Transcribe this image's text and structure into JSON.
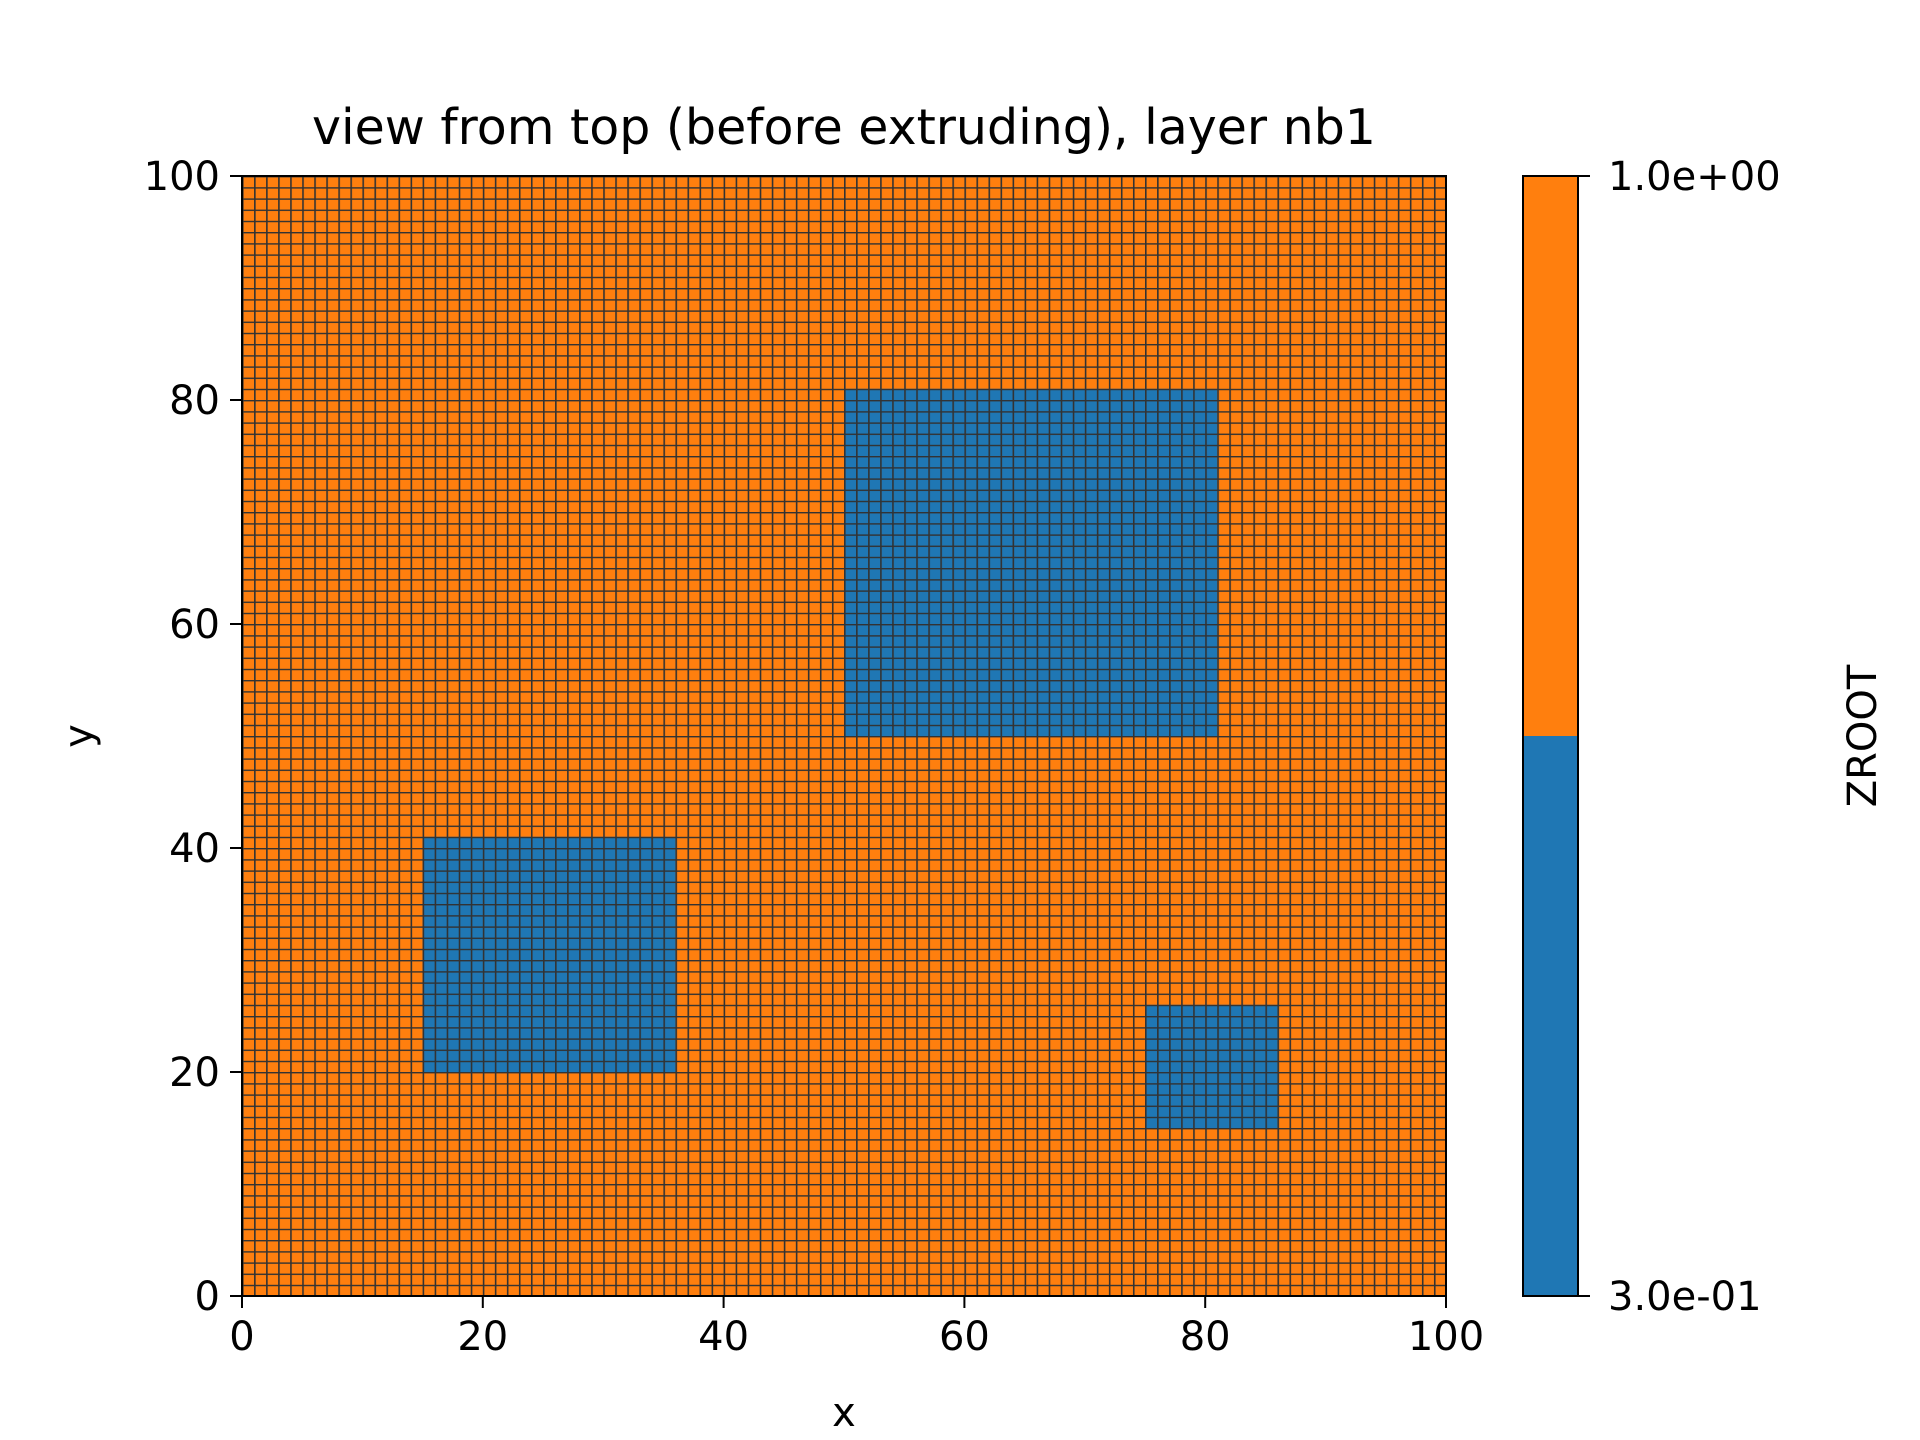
{
  "chart_data": {
    "type": "heatmap",
    "title": "view from top (before extruding), layer nb1",
    "xlabel": "x",
    "ylabel": "y",
    "xlim": [
      0,
      100
    ],
    "ylim": [
      0,
      100
    ],
    "x_ticks": [
      "0",
      "20",
      "40",
      "60",
      "80",
      "100"
    ],
    "y_ticks": [
      "0",
      "20",
      "40",
      "60",
      "80",
      "100"
    ],
    "grid_lines": true,
    "grid_spacing": 1,
    "background_value": 1.0,
    "regions": [
      {
        "x": [
          15,
          36
        ],
        "y": [
          20,
          41
        ],
        "value": 0.3
      },
      {
        "x": [
          50,
          81
        ],
        "y": [
          50,
          81
        ],
        "value": 0.3
      },
      {
        "x": [
          75,
          86
        ],
        "y": [
          15,
          26
        ],
        "value": 0.3
      }
    ],
    "colorbar": {
      "label": "ZROOT",
      "min": 0.3,
      "max": 1.0,
      "min_label": "3.0e-01",
      "max_label": "1.0e+00",
      "colors": [
        "#1f77b4",
        "#ff7f0e"
      ]
    },
    "grid_color": "#333333"
  }
}
